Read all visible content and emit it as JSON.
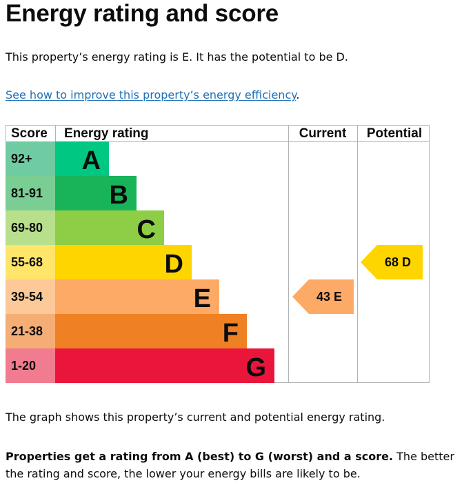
{
  "page": {
    "title": "Energy rating and score",
    "intro": "This property’s energy rating is E. It has the potential to be D.",
    "link_text": "See how to improve this property’s energy efficiency",
    "link_suffix": ".",
    "graph_note": "The graph shows this property’s current and potential energy rating.",
    "explainer_bold": "Properties get a rating from A (best) to G (worst) and a score.",
    "explainer_rest": " The better the rating and score, the lower your energy bills are likely to be."
  },
  "chart_data": {
    "type": "bar",
    "headers": {
      "score": "Score",
      "rating": "Energy rating",
      "current": "Current",
      "potential": "Potential"
    },
    "bands": [
      {
        "letter": "A",
        "score_range": "92+",
        "color": "#00c781",
        "score_color": "#6fcba2"
      },
      {
        "letter": "B",
        "score_range": "81-91",
        "color": "#19b459",
        "score_color": "#7acd93"
      },
      {
        "letter": "C",
        "score_range": "69-80",
        "color": "#8dce46",
        "score_color": "#b8e08c"
      },
      {
        "letter": "D",
        "score_range": "55-68",
        "color": "#ffd500",
        "score_color": "#ffe56a"
      },
      {
        "letter": "E",
        "score_range": "39-54",
        "color": "#fcaa65",
        "score_color": "#fdc998"
      },
      {
        "letter": "F",
        "score_range": "21-38",
        "color": "#ef8023",
        "score_color": "#f5ad76"
      },
      {
        "letter": "G",
        "score_range": "1-20",
        "color": "#e9153b",
        "score_color": "#f17b8f"
      }
    ],
    "current": {
      "score": 43,
      "letter": "E",
      "label": "43 E"
    },
    "potential": {
      "score": 68,
      "letter": "D",
      "label": "68 D"
    }
  }
}
